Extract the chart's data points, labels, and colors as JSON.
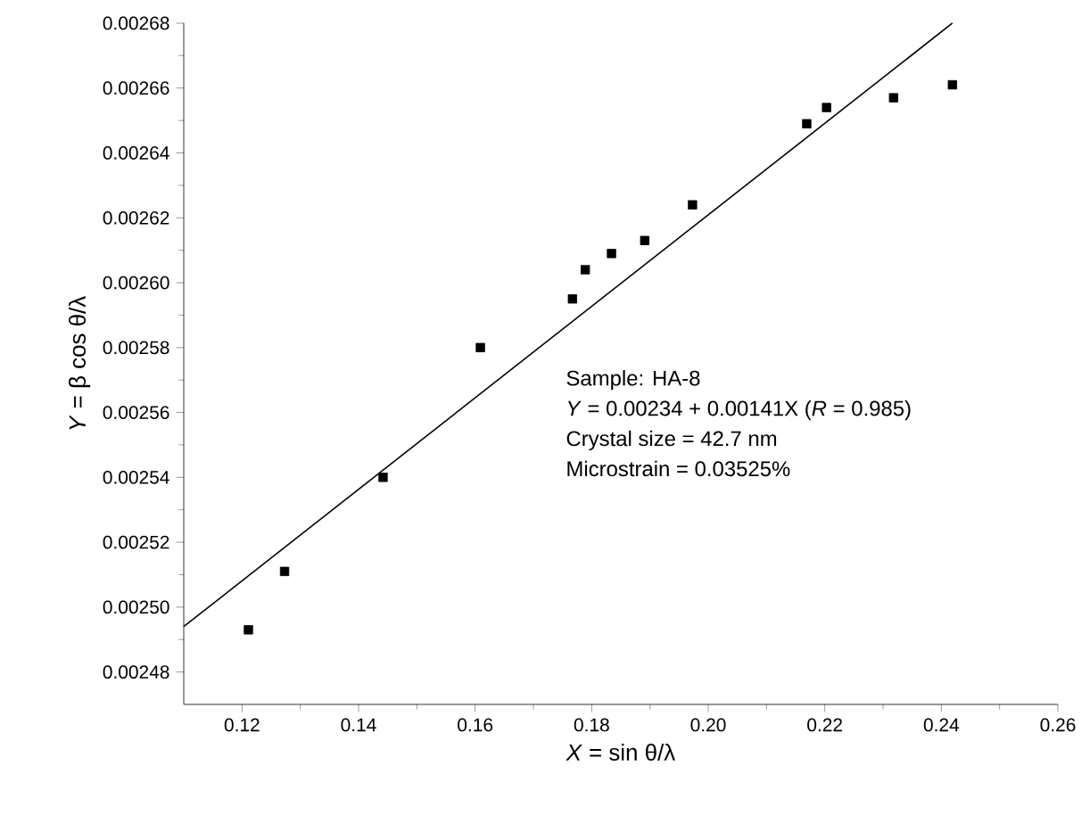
{
  "chart_data": {
    "type": "scatter",
    "xlabel": "*X* = sin θ/λ",
    "ylabel": "*Y* = β cos θ/λ",
    "x": [
      0.1211,
      0.1273,
      0.1442,
      0.1609,
      0.1767,
      0.1789,
      0.1834,
      0.1891,
      0.1973,
      0.2169,
      0.2203,
      0.2318,
      0.2419
    ],
    "series": [
      {
        "color": "#000000",
        "marker": "square",
        "values": [
          0.002493,
          0.002511,
          0.00254,
          0.00258,
          0.002595,
          0.002604,
          0.002609,
          0.002613,
          0.002624,
          0.002649,
          0.002654,
          0.002657,
          0.002661
        ]
      },
      {
        "type": "line",
        "color": "#000000",
        "marker": "none",
        "line_style": "solid",
        "x": [
          0.11,
          0.2419
        ],
        "values": [
          0.002494,
          0.00268
        ]
      }
    ],
    "xlim": [
      0.11,
      0.26
    ],
    "ylim": [
      0.00247,
      0.00268
    ],
    "xticks": [
      0.12,
      0.14,
      0.16,
      0.18,
      {
        "value": 0.2,
        "label": "0.20"
      },
      0.22,
      0.24,
      0.26
    ],
    "yticks": [
      0.00248,
      {
        "value": 0.0025,
        "label": "0.00250"
      },
      0.00252,
      0.00254,
      0.00256,
      0.00258,
      {
        "value": 0.0026,
        "label": "0.00260"
      },
      0.00262,
      0.00264,
      0.00266,
      0.00268
    ],
    "annotations": [
      "Sample: HA-8",
      "*Y* = 0.00234 + 0.00141X (*R* = 0.985)",
      "Crystal size = 42.7 nm",
      "Microstrain = 0.03525%"
    ],
    "grid": false
  }
}
